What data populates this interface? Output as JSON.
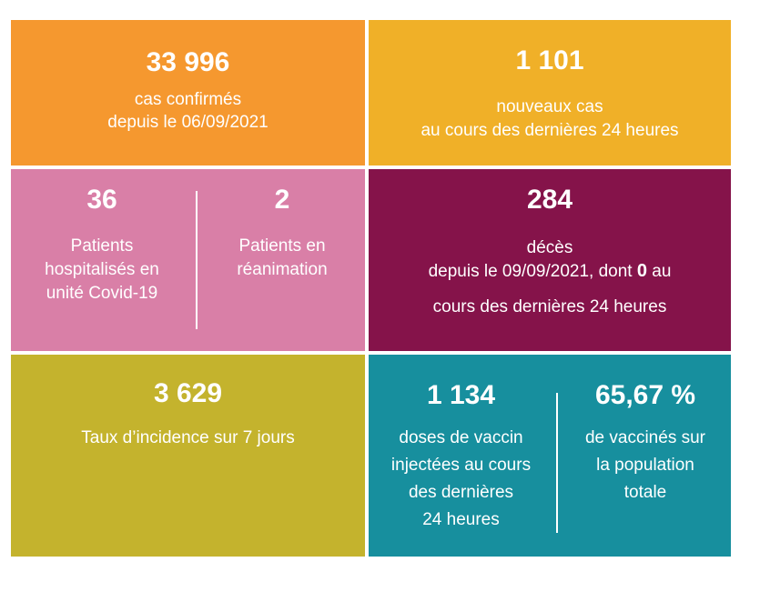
{
  "colors": {
    "orange": "#f5982f",
    "yellow": "#f0b028",
    "pink": "#d97fa7",
    "maroon": "#85134a",
    "olive": "#c4b32d",
    "teal": "#178f9e"
  },
  "confirmed": {
    "value": "33 996",
    "line1": "cas confirmés",
    "line2": "depuis le 06/09/2021"
  },
  "new_cases": {
    "value": "1 101",
    "line1": "nouveaux cas",
    "line2": "au cours des dernières 24 heures"
  },
  "hospital": {
    "hosp_value": "36",
    "hosp_line1": "Patients",
    "hosp_line2": "hospitalisés en",
    "hosp_line3": "unité Covid-19",
    "icu_value": "2",
    "icu_line1": "Patients en",
    "icu_line2": "réanimation"
  },
  "deaths": {
    "value": "284",
    "line1": "décès",
    "line2_before": "depuis le 09/09/2021, dont",
    "recent_value": "0",
    "line2_after": "au",
    "line3": "cours des dernières 24 heures"
  },
  "incidence": {
    "value": "3 629",
    "label": "Taux d’incidence sur 7 jours"
  },
  "vaccination": {
    "doses_value": "1 134",
    "doses_line1": "doses de vaccin",
    "doses_line2": "injectées au cours",
    "doses_line3": "des dernières",
    "doses_line4": "24 heures",
    "rate_value": "65,67 %",
    "rate_line1": "de vaccinés sur",
    "rate_line2": "la population",
    "rate_line3": "totale"
  }
}
